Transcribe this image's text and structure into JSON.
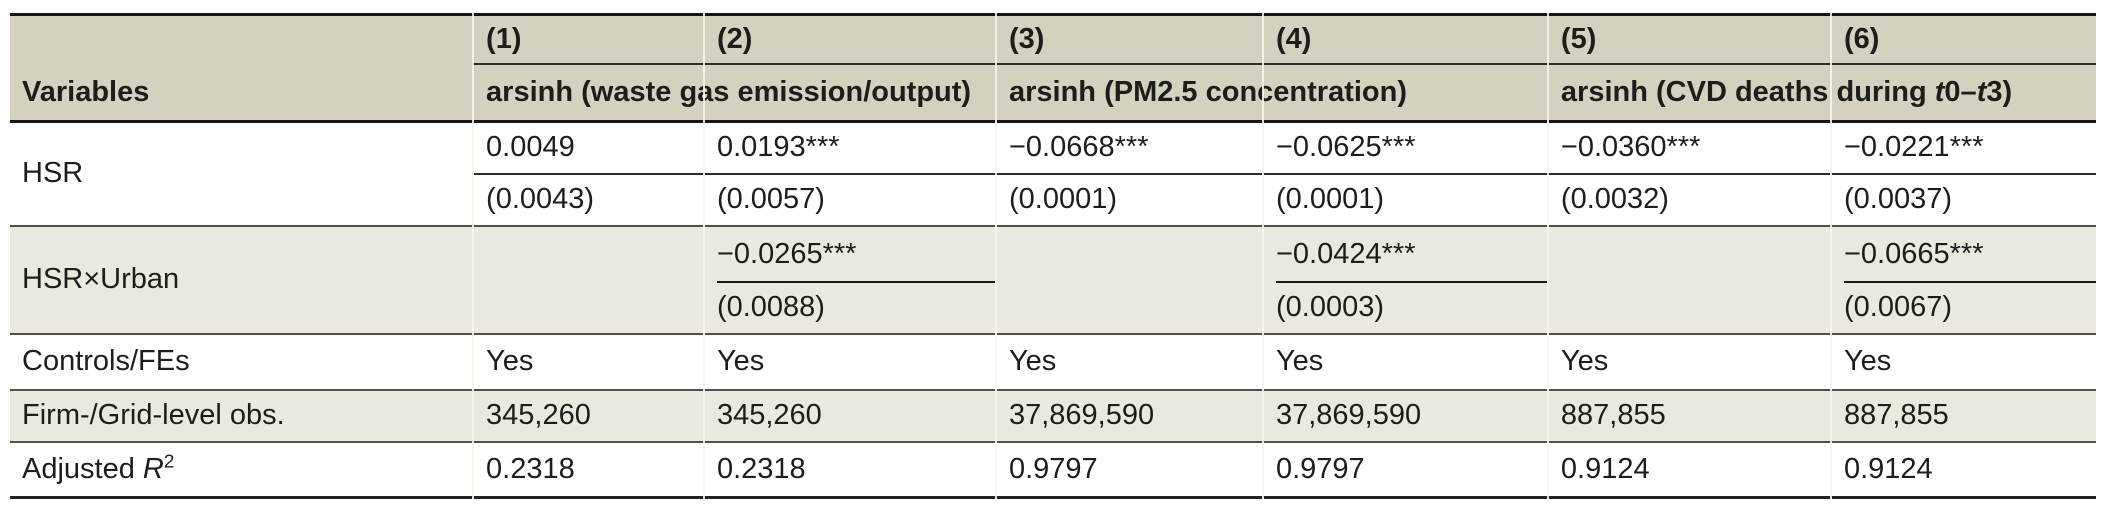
{
  "table": {
    "header": {
      "corner_label": "Variables",
      "col_numbers": [
        "(1)",
        "(2)",
        "(3)",
        "(4)",
        "(5)",
        "(6)"
      ],
      "group1_label": "arsinh (waste gas emission/output)",
      "group2_label": "arsinh (PM2.5 concentration)",
      "group3": {
        "pre": "arsinh (CVD deaths during ",
        "t1": "t",
        "mid": "0–",
        "t2": "t",
        "post": "3)"
      }
    },
    "rows": {
      "hsr": {
        "label": "HSR",
        "coefficients": [
          "0.0049",
          "0.0193***",
          "−0.0668***",
          "−0.0625***",
          "−0.0360***",
          "−0.0221***"
        ],
        "std_errors": [
          "(0.0043)",
          "(0.0057)",
          "(0.0001)",
          "(0.0001)",
          "(0.0032)",
          "(0.0037)"
        ]
      },
      "hsr_urban": {
        "label": "HSR×Urban",
        "coefficients": [
          "",
          "−0.0265***",
          "",
          "−0.0424***",
          "",
          "−0.0665***"
        ],
        "std_errors": [
          "",
          "(0.0088)",
          "",
          "(0.0003)",
          "",
          "(0.0067)"
        ]
      },
      "controls": {
        "label": "Controls/FEs",
        "values": [
          "Yes",
          "Yes",
          "Yes",
          "Yes",
          "Yes",
          "Yes"
        ]
      },
      "observations": {
        "label": "Firm-/Grid-level obs.",
        "values": [
          "345,260",
          "345,260",
          "37,869,590",
          "37,869,590",
          "887,855",
          "887,855"
        ]
      },
      "adj_r2": {
        "label_pre": "Adjusted ",
        "label_r": "R",
        "label_sup": "2",
        "values": [
          "0.2318",
          "0.2318",
          "0.9797",
          "0.9797",
          "0.9124",
          "0.9124"
        ]
      }
    },
    "colors": {
      "header_bg": "#d5d1bf",
      "alt_row_bg": "#ebe9de",
      "rule_dark": "#161616",
      "rule_mid": "#2b2b2b",
      "rule_gray": "#4f4f4f",
      "hairline": "#f6f4ec",
      "text": "#1d1d1b"
    }
  }
}
